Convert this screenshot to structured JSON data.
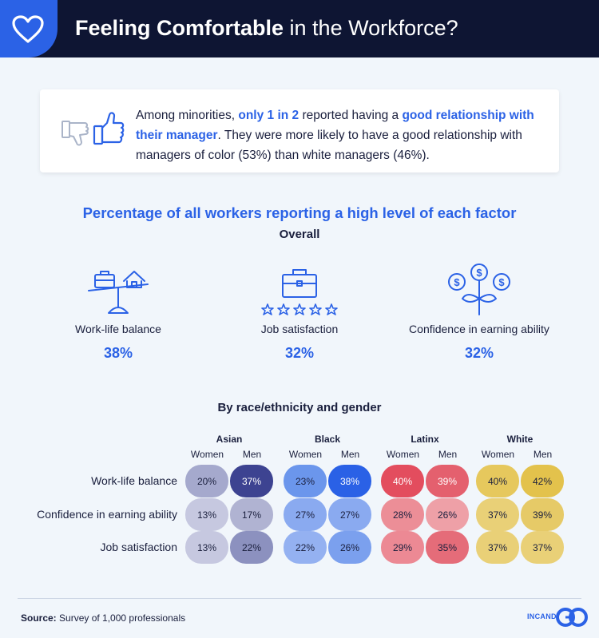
{
  "header": {
    "title_bold": "Feeling Comfortable",
    "title_rest": " in the Workforce?"
  },
  "callout": {
    "t1": "Among minorities, ",
    "hl1": "only 1 in 2",
    "t2": " reported having a ",
    "hl2": "good relationship with their manager",
    "t3": ". They were more likely to have a good relationship with managers of color (53%) than white managers (46%)."
  },
  "section_title": "Percentage of all workers reporting a high level of each factor",
  "overall_label": "Overall",
  "overall": [
    {
      "label": "Work-life balance",
      "value": "38%"
    },
    {
      "label": "Job satisfaction",
      "value": "32%"
    },
    {
      "label": "Confidence in earning ability",
      "value": "32%"
    }
  ],
  "by_group_title": "By race/ethnicity and gender",
  "chart_data": {
    "type": "heatmap",
    "groups": [
      "Asian",
      "Black",
      "Latinx",
      "White"
    ],
    "genders": [
      "Women",
      "Men"
    ],
    "rows": [
      "Work-life balance",
      "Confidence in earning ability",
      "Job satisfaction"
    ],
    "values": [
      [
        20,
        37,
        23,
        38,
        40,
        39,
        40,
        42
      ],
      [
        13,
        17,
        27,
        27,
        28,
        26,
        37,
        39
      ],
      [
        13,
        22,
        22,
        26,
        29,
        35,
        37,
        37
      ]
    ],
    "cell_colors": [
      [
        "#a5a9cd",
        "#3d4391",
        "#6b96ec",
        "#2a61e6",
        "#e34d5e",
        "#e4606e",
        "#e6c85d",
        "#e3c24c"
      ],
      [
        "#c6c8e0",
        "#b0b3d2",
        "#8aaaf0",
        "#8aaaf0",
        "#ec8e97",
        "#eea0a7",
        "#e9d077",
        "#e6ca67"
      ],
      [
        "#c6c8e0",
        "#8c91bf",
        "#94b1f1",
        "#7ba0ee",
        "#ec8994",
        "#e56c79",
        "#e9d077",
        "#e9d077"
      ]
    ]
  },
  "footer": {
    "source_label": "Source:",
    "source_text": " Survey of 1,000 professionals",
    "logo_text": "INCAND"
  },
  "colors": {
    "header_bg": "#0e1533",
    "accent": "#2b62e6",
    "page_bg": "#f1f6fb"
  },
  "icons": [
    "heart-icon",
    "thumbs-down-icon",
    "thumbs-up-icon",
    "balance-scale-icon",
    "briefcase-stars-icon",
    "money-plant-icon"
  ]
}
